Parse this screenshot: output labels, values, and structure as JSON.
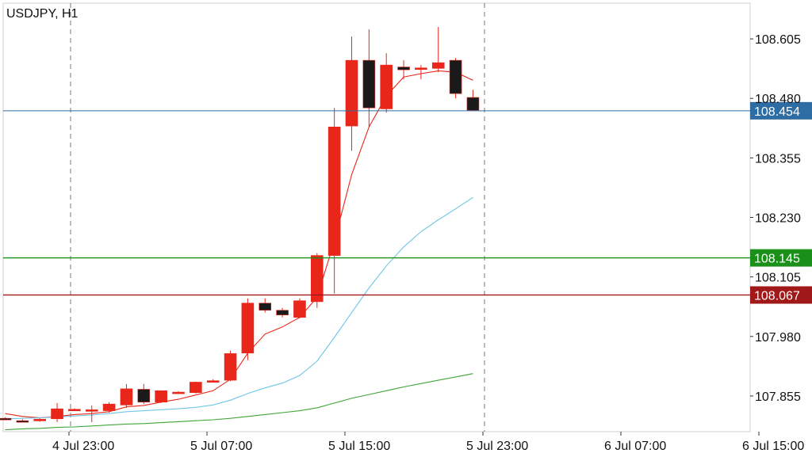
{
  "chart_data": {
    "type": "candlestick",
    "title": "USDJPY, H1",
    "x_ticks": [
      "4 Jul 23:00",
      "5 Jul 07:00",
      "5 Jul 15:00",
      "5 Jul 23:00",
      "6 Jul 07:00",
      "6 Jul 15:00"
    ],
    "y_ticks": [
      "108.605",
      "108.480",
      "108.355",
      "108.230",
      "108.105",
      "107.980",
      "107.855"
    ],
    "ylim": [
      107.78,
      108.68
    ],
    "candles": [
      {
        "open": 107.808,
        "high": 107.81,
        "low": 107.804,
        "close": 107.806
      },
      {
        "open": 107.803,
        "high": 107.806,
        "low": 107.801,
        "close": 107.802
      },
      {
        "open": 107.803,
        "high": 107.808,
        "low": 107.801,
        "close": 107.806
      },
      {
        "open": 107.807,
        "high": 107.84,
        "low": 107.8,
        "close": 107.828
      },
      {
        "open": 107.827,
        "high": 107.829,
        "low": 107.825,
        "close": 107.827
      },
      {
        "open": 107.825,
        "high": 107.835,
        "low": 107.8,
        "close": 107.826
      },
      {
        "open": 107.824,
        "high": 107.842,
        "low": 107.82,
        "close": 107.838
      },
      {
        "open": 107.836,
        "high": 107.88,
        "low": 107.83,
        "close": 107.87
      },
      {
        "open": 107.869,
        "high": 107.88,
        "low": 107.838,
        "close": 107.842
      },
      {
        "open": 107.842,
        "high": 107.866,
        "low": 107.84,
        "close": 107.866
      },
      {
        "open": 107.863,
        "high": 107.865,
        "low": 107.86,
        "close": 107.863
      },
      {
        "open": 107.862,
        "high": 107.885,
        "low": 107.86,
        "close": 107.884
      },
      {
        "open": 107.886,
        "high": 107.89,
        "low": 107.884,
        "close": 107.887
      },
      {
        "open": 107.888,
        "high": 107.95,
        "low": 107.886,
        "close": 107.944
      },
      {
        "open": 107.945,
        "high": 108.06,
        "low": 107.93,
        "close": 108.05
      },
      {
        "open": 108.05,
        "high": 108.06,
        "low": 108.03,
        "close": 108.035
      },
      {
        "open": 108.035,
        "high": 108.04,
        "low": 108.02,
        "close": 108.025
      },
      {
        "open": 108.02,
        "high": 108.06,
        "low": 108.018,
        "close": 108.055
      },
      {
        "open": 108.053,
        "high": 108.155,
        "low": 108.04,
        "close": 108.15
      },
      {
        "open": 108.15,
        "high": 108.46,
        "low": 108.07,
        "close": 108.42
      },
      {
        "open": 108.422,
        "high": 108.61,
        "low": 108.37,
        "close": 108.56
      },
      {
        "open": 108.56,
        "high": 108.625,
        "low": 108.42,
        "close": 108.46
      },
      {
        "open": 108.458,
        "high": 108.575,
        "low": 108.45,
        "close": 108.55
      },
      {
        "open": 108.546,
        "high": 108.56,
        "low": 108.52,
        "close": 108.54
      },
      {
        "open": 108.543,
        "high": 108.55,
        "low": 108.52,
        "close": 108.544
      },
      {
        "open": 108.543,
        "high": 108.63,
        "low": 108.535,
        "close": 108.555
      },
      {
        "open": 108.56,
        "high": 108.565,
        "low": 108.48,
        "close": 108.49
      },
      {
        "open": 108.482,
        "high": 108.498,
        "low": 108.455,
        "close": 108.455
      }
    ],
    "indicators": [
      {
        "color": "#e8261a",
        "values": [
          107.818,
          107.812,
          107.809,
          107.812,
          107.816,
          107.818,
          107.822,
          107.832,
          107.835,
          107.842,
          107.848,
          107.857,
          107.866,
          107.89,
          107.945,
          107.985,
          108.0,
          108.02,
          108.062,
          108.18,
          108.32,
          108.42,
          108.485,
          108.525,
          108.532,
          108.538,
          108.535,
          108.518
        ]
      },
      {
        "color": "#6ec6e6",
        "values": [
          107.807,
          107.808,
          107.809,
          107.811,
          107.813,
          107.815,
          107.818,
          107.822,
          107.824,
          107.826,
          107.828,
          107.831,
          107.836,
          107.846,
          107.86,
          107.872,
          107.882,
          107.898,
          107.928,
          107.978,
          108.03,
          108.082,
          108.128,
          108.168,
          108.2,
          108.225,
          108.248,
          108.272
        ]
      },
      {
        "color": "#3fa535",
        "values": [
          107.784,
          107.786,
          107.787,
          107.789,
          107.79,
          107.792,
          107.794,
          107.796,
          107.797,
          107.799,
          107.801,
          107.803,
          107.805,
          107.808,
          107.812,
          107.816,
          107.82,
          107.824,
          107.83,
          107.84,
          107.85,
          107.858,
          107.866,
          107.874,
          107.881,
          107.888,
          107.895,
          107.902
        ]
      }
    ],
    "horizontal_lines": [
      {
        "value": 108.454,
        "label": "108.454",
        "color": "#2e6da4"
      },
      {
        "value": 108.145,
        "label": "108.145",
        "color": "#1a8f1a"
      },
      {
        "value": 108.067,
        "label": "108.067",
        "color": "#a01818"
      }
    ],
    "vertical_dashed_at": [
      "4 Jul 23:00",
      "5 Jul 23:00"
    ],
    "colors": {
      "bull": "#e8261a",
      "bear": "#1a1a1a",
      "wick": "#e8261a",
      "grid": "#e6e6e6",
      "axis": "#333333"
    }
  }
}
